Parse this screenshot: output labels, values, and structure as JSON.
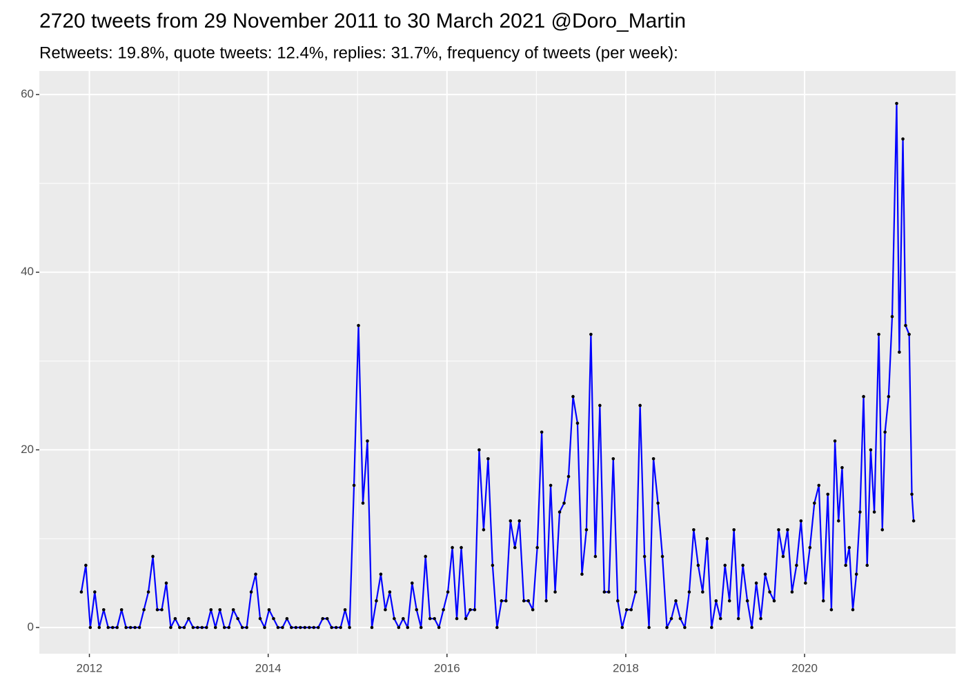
{
  "chart_data": {
    "type": "line",
    "title": "2720 tweets from 29 November 2011 to 30 March 2021 @Doro_Martin",
    "subtitle": "Retweets: 19.8%, quote tweets: 12.4%, replies: 31.7%, frequency of tweets (per week):",
    "x": [
      2011.91,
      2011.96,
      2012.01,
      2012.06,
      2012.11,
      2012.16,
      2012.21,
      2012.26,
      2012.31,
      2012.36,
      2012.41,
      2012.46,
      2012.51,
      2012.56,
      2012.61,
      2012.66,
      2012.71,
      2012.76,
      2012.81,
      2012.86,
      2012.91,
      2012.96,
      2013.01,
      2013.06,
      2013.11,
      2013.16,
      2013.21,
      2013.26,
      2013.31,
      2013.36,
      2013.41,
      2013.46,
      2013.51,
      2013.56,
      2013.61,
      2013.66,
      2013.71,
      2013.76,
      2013.81,
      2013.86,
      2013.91,
      2013.96,
      2014.01,
      2014.06,
      2014.11,
      2014.16,
      2014.21,
      2014.26,
      2014.31,
      2014.36,
      2014.41,
      2014.46,
      2014.51,
      2014.56,
      2014.61,
      2014.66,
      2014.71,
      2014.76,
      2014.81,
      2014.86,
      2014.91,
      2014.96,
      2015.01,
      2015.06,
      2015.11,
      2015.16,
      2015.21,
      2015.26,
      2015.31,
      2015.36,
      2015.41,
      2015.46,
      2015.51,
      2015.56,
      2015.61,
      2015.66,
      2015.71,
      2015.76,
      2015.81,
      2015.86,
      2015.91,
      2015.96,
      2016.01,
      2016.06,
      2016.11,
      2016.16,
      2016.21,
      2016.26,
      2016.31,
      2016.36,
      2016.41,
      2016.46,
      2016.51,
      2016.56,
      2016.61,
      2016.66,
      2016.71,
      2016.76,
      2016.81,
      2016.86,
      2016.91,
      2016.96,
      2017.01,
      2017.06,
      2017.11,
      2017.16,
      2017.21,
      2017.26,
      2017.31,
      2017.36,
      2017.41,
      2017.46,
      2017.51,
      2017.56,
      2017.61,
      2017.66,
      2017.71,
      2017.76,
      2017.81,
      2017.86,
      2017.91,
      2017.96,
      2018.01,
      2018.06,
      2018.11,
      2018.16,
      2018.21,
      2018.26,
      2018.31,
      2018.36,
      2018.41,
      2018.46,
      2018.51,
      2018.56,
      2018.61,
      2018.66,
      2018.71,
      2018.76,
      2018.81,
      2018.86,
      2018.91,
      2018.96,
      2019.01,
      2019.06,
      2019.11,
      2019.16,
      2019.21,
      2019.26,
      2019.31,
      2019.36,
      2019.41,
      2019.46,
      2019.51,
      2019.56,
      2019.61,
      2019.66,
      2019.71,
      2019.76,
      2019.81,
      2019.86,
      2019.91,
      2019.96,
      2020.01,
      2020.06,
      2020.11,
      2020.16,
      2020.21,
      2020.26,
      2020.3,
      2020.34,
      2020.38,
      2020.42,
      2020.46,
      2020.5,
      2020.54,
      2020.58,
      2020.62,
      2020.66,
      2020.7,
      2020.74,
      2020.78,
      2020.83,
      2020.87,
      2020.9,
      2020.94,
      2020.98,
      2021.03,
      2021.06,
      2021.1,
      2021.13,
      2021.17,
      2021.2,
      2021.22
    ],
    "series": [
      {
        "color": "#0000ff",
        "point_color": "#000000",
        "values": [
          4,
          7,
          0,
          4,
          0,
          2,
          0,
          0,
          0,
          2,
          0,
          0,
          0,
          0,
          2,
          4,
          8,
          2,
          2,
          5,
          0,
          1,
          0,
          0,
          1,
          0,
          0,
          0,
          0,
          2,
          0,
          2,
          0,
          0,
          2,
          1,
          0,
          0,
          4,
          6,
          1,
          0,
          2,
          1,
          0,
          0,
          1,
          0,
          0,
          0,
          0,
          0,
          0,
          0,
          1,
          1,
          0,
          0,
          0,
          2,
          0,
          16,
          34,
          14,
          21,
          0,
          3,
          6,
          2,
          4,
          1,
          0,
          1,
          0,
          5,
          2,
          0,
          8,
          1,
          1,
          0,
          2,
          4,
          9,
          1,
          9,
          1,
          2,
          2,
          20,
          11,
          19,
          7,
          0,
          3,
          3,
          12,
          9,
          12,
          3,
          3,
          2,
          9,
          22,
          3,
          16,
          4,
          13,
          14,
          17,
          26,
          23,
          6,
          11,
          33,
          8,
          25,
          4,
          4,
          19,
          3,
          0,
          2,
          2,
          4,
          25,
          8,
          0,
          19,
          14,
          8,
          0,
          1,
          3,
          1,
          0,
          4,
          11,
          7,
          4,
          10,
          0,
          3,
          1,
          7,
          3,
          11,
          1,
          7,
          3,
          0,
          5,
          1,
          6,
          4,
          3,
          11,
          8,
          11,
          4,
          7,
          12,
          5,
          9,
          14,
          16,
          3,
          15,
          2,
          21,
          12,
          18,
          7,
          9,
          2,
          6,
          13,
          26,
          7,
          20,
          13,
          33,
          11,
          22,
          26,
          35,
          59,
          31,
          55,
          34,
          33,
          15,
          12
        ]
      }
    ],
    "xlim": [
      2011.44,
      2021.69
    ],
    "xticks": [
      2012,
      2014,
      2016,
      2018,
      2020
    ],
    "ylim": [
      -2.95,
      62.65
    ],
    "yticks": [
      0,
      20,
      40,
      60
    ],
    "grid": true,
    "minor_grid": true
  }
}
